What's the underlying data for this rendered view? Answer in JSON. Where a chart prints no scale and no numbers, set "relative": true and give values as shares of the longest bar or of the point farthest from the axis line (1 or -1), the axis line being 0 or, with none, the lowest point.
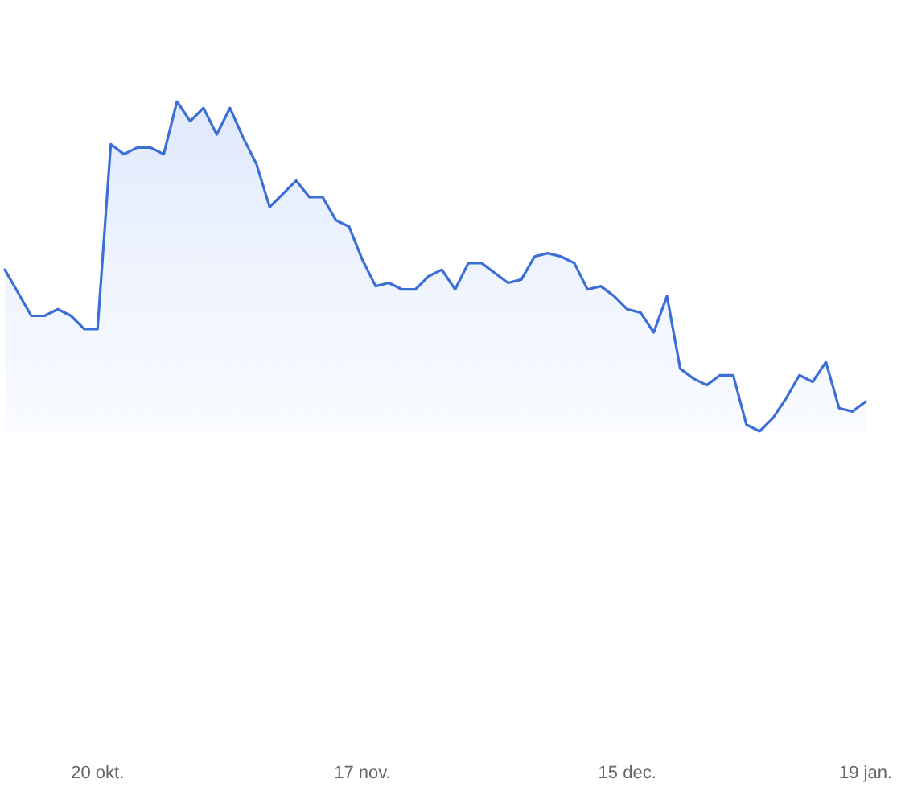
{
  "chart_data": {
    "type": "area",
    "relative": true,
    "marker": "none",
    "line_style": "solid",
    "categories": [
      null,
      null,
      null,
      null,
      null,
      null,
      null,
      "20 okt.",
      null,
      null,
      null,
      null,
      null,
      null,
      null,
      null,
      null,
      null,
      null,
      null,
      null,
      null,
      null,
      null,
      null,
      null,
      null,
      "17 nov.",
      null,
      null,
      null,
      null,
      null,
      null,
      null,
      null,
      null,
      null,
      null,
      null,
      null,
      null,
      null,
      null,
      null,
      null,
      null,
      "15 dec.",
      null,
      null,
      null,
      null,
      null,
      null,
      null,
      null,
      null,
      null,
      null,
      null,
      null,
      null,
      null,
      null,
      null,
      "19 jan."
    ],
    "series": [
      {
        "color": "#3b6fd6",
        "values": [
          0.49,
          0.42,
          0.35,
          0.35,
          0.37,
          0.35,
          0.31,
          0.31,
          0.87,
          0.84,
          0.86,
          0.86,
          0.84,
          1,
          0.94,
          0.98,
          0.9,
          0.98,
          0.89,
          0.81,
          0.68,
          0.72,
          0.76,
          0.71,
          0.71,
          0.64,
          0.62,
          0.52,
          0.44,
          0.45,
          0.43,
          0.43,
          0.47,
          0.49,
          0.43,
          0.51,
          0.51,
          0.48,
          0.45,
          0.46,
          0.53,
          0.54,
          0.53,
          0.51,
          0.43,
          0.44,
          0.41,
          0.37,
          0.36,
          0.3,
          0.41,
          0.19,
          0.16,
          0.14,
          0.17,
          0.17,
          0.02,
          0,
          0.04,
          0.1,
          0.17,
          0.15,
          0.21,
          0.07,
          0.06,
          0.09
        ]
      }
    ]
  }
}
